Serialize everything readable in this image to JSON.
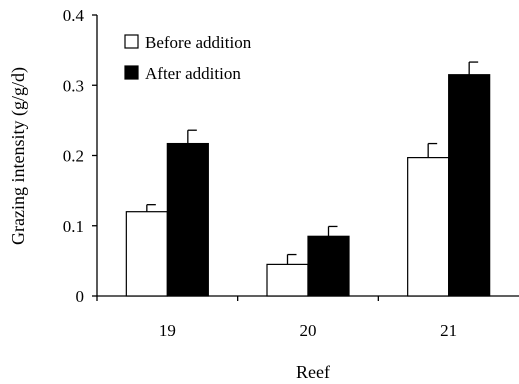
{
  "chart_data": {
    "type": "bar",
    "categories": [
      "19",
      "20",
      "21"
    ],
    "series": [
      {
        "name": "Before addition",
        "values": [
          0.12,
          0.045,
          0.197
        ],
        "errors": [
          0.01,
          0.014,
          0.02
        ],
        "color": "#ffffff"
      },
      {
        "name": "After addition",
        "values": [
          0.217,
          0.085,
          0.315
        ],
        "errors": [
          0.019,
          0.014,
          0.018
        ],
        "color": "#000000"
      }
    ],
    "xlabel": "Reef",
    "ylabel": "Grazing intensity (g/g/d)",
    "ylim": [
      0,
      0.4
    ],
    "yticks": [
      "0",
      "0.1",
      "0.2",
      "0.3",
      "0.4"
    ],
    "grid": false,
    "legend_position": "top-left"
  }
}
